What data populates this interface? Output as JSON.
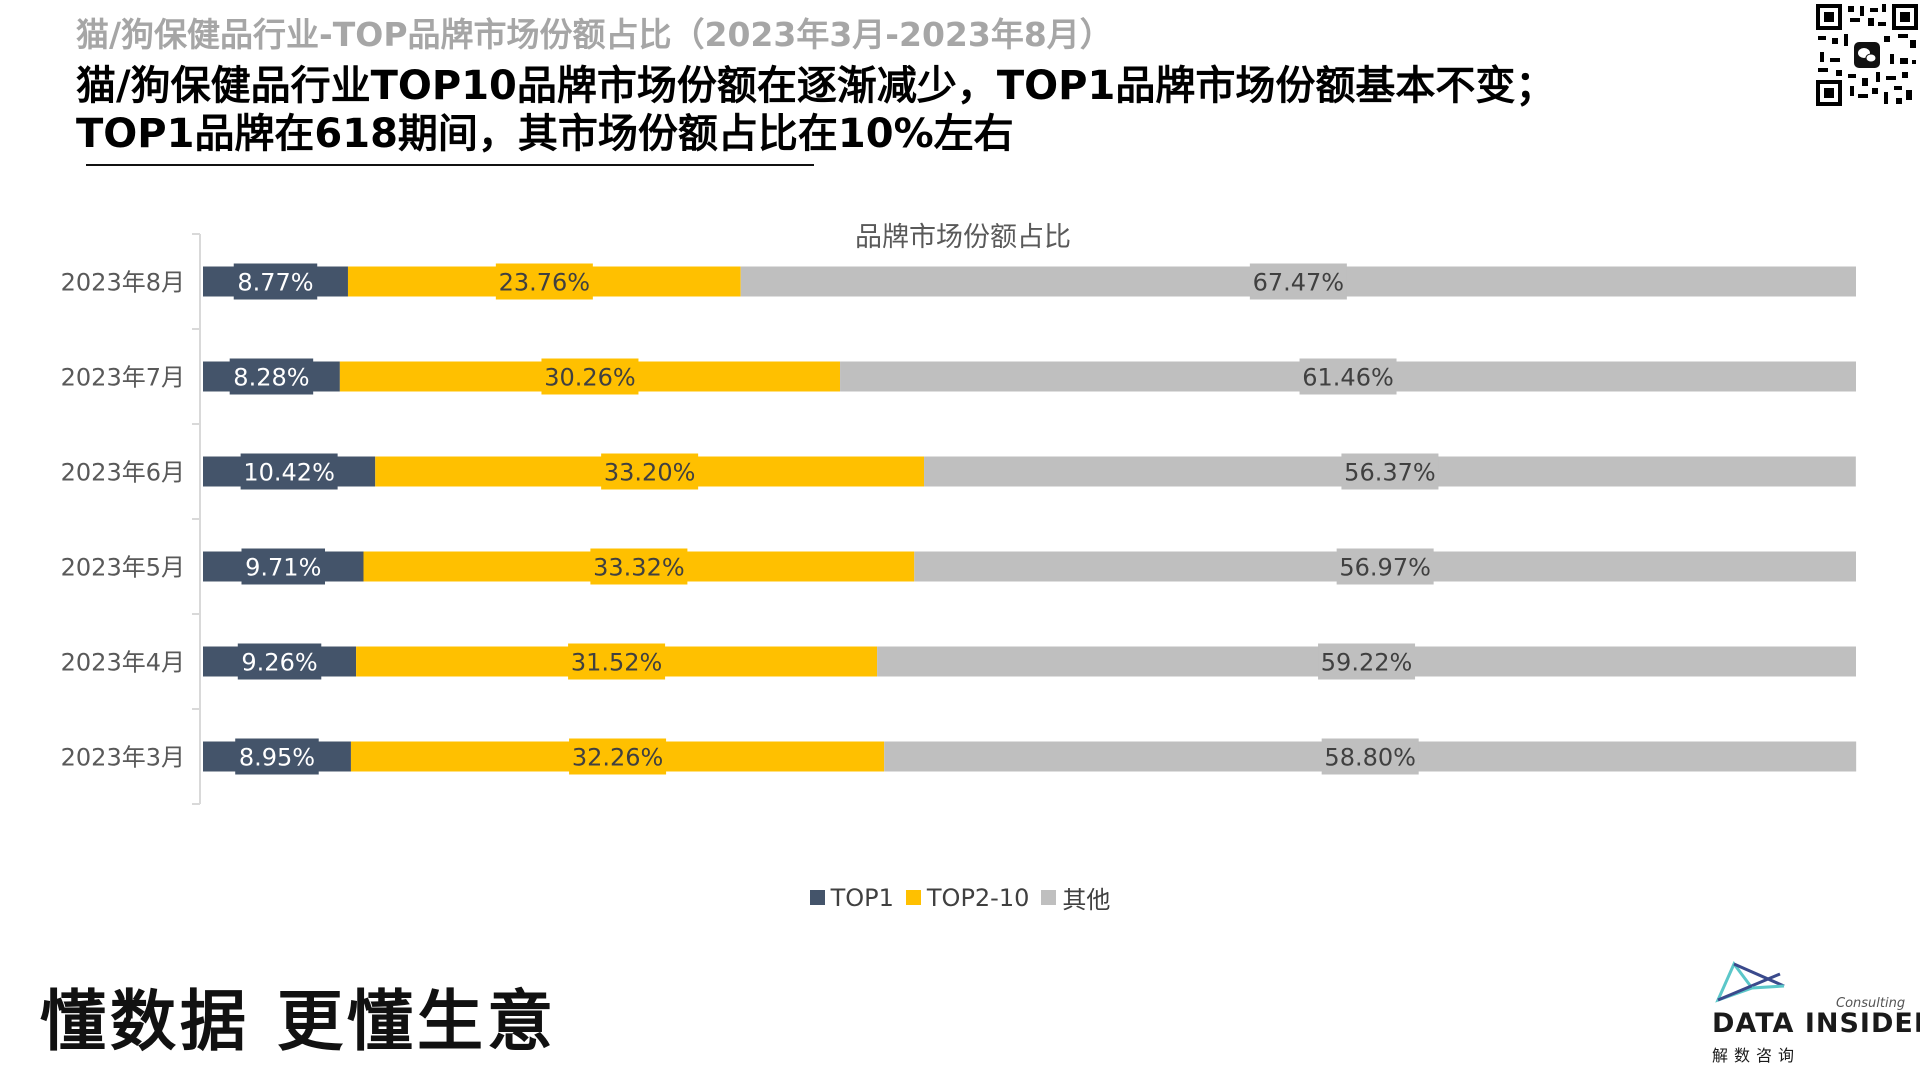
{
  "page": {
    "top_title": "猫/狗保健品行业-TOP品牌市场份额占比（2023年3月-2023年8月）",
    "headline": "猫/狗保健品行业TOP10品牌市场份额在逐渐减少，TOP1品牌市场份额基本不变；TOP1品牌在618期间，其市场份额占比在10%左右",
    "slogan": "懂数据 更懂生意",
    "logo_name": "DATA INSIDER",
    "logo_sub": "解数咨询",
    "logo_consulting": "Consulting"
  },
  "chart_data": {
    "type": "bar",
    "orientation": "horizontal",
    "stacked": true,
    "title": "品牌市场份额占比",
    "categories": [
      "2023年8月",
      "2023年7月",
      "2023年6月",
      "2023年5月",
      "2023年4月",
      "2023年3月"
    ],
    "series": [
      {
        "name": "TOP1",
        "color": "#44546a",
        "values": [
          8.77,
          8.28,
          10.42,
          9.71,
          9.26,
          8.95
        ],
        "labels": [
          "8.77%",
          "8.28%",
          "10.42%",
          "9.71%",
          "9.26%",
          "8.95%"
        ]
      },
      {
        "name": "TOP2-10",
        "color": "#ffc000",
        "values": [
          23.76,
          30.26,
          33.2,
          33.32,
          31.52,
          32.26
        ],
        "labels": [
          "23.76%",
          "30.26%",
          "33.20%",
          "33.32%",
          "31.52%",
          "32.26%"
        ]
      },
      {
        "name": "其他",
        "color": "#bfbfbf",
        "values": [
          67.47,
          61.46,
          56.37,
          56.97,
          59.22,
          58.8
        ],
        "labels": [
          "67.47%",
          "61.46%",
          "56.37%",
          "56.97%",
          "59.22%",
          "58.80%"
        ]
      }
    ],
    "xlim": [
      0,
      100
    ],
    "grid": false,
    "legend_position": "bottom"
  }
}
